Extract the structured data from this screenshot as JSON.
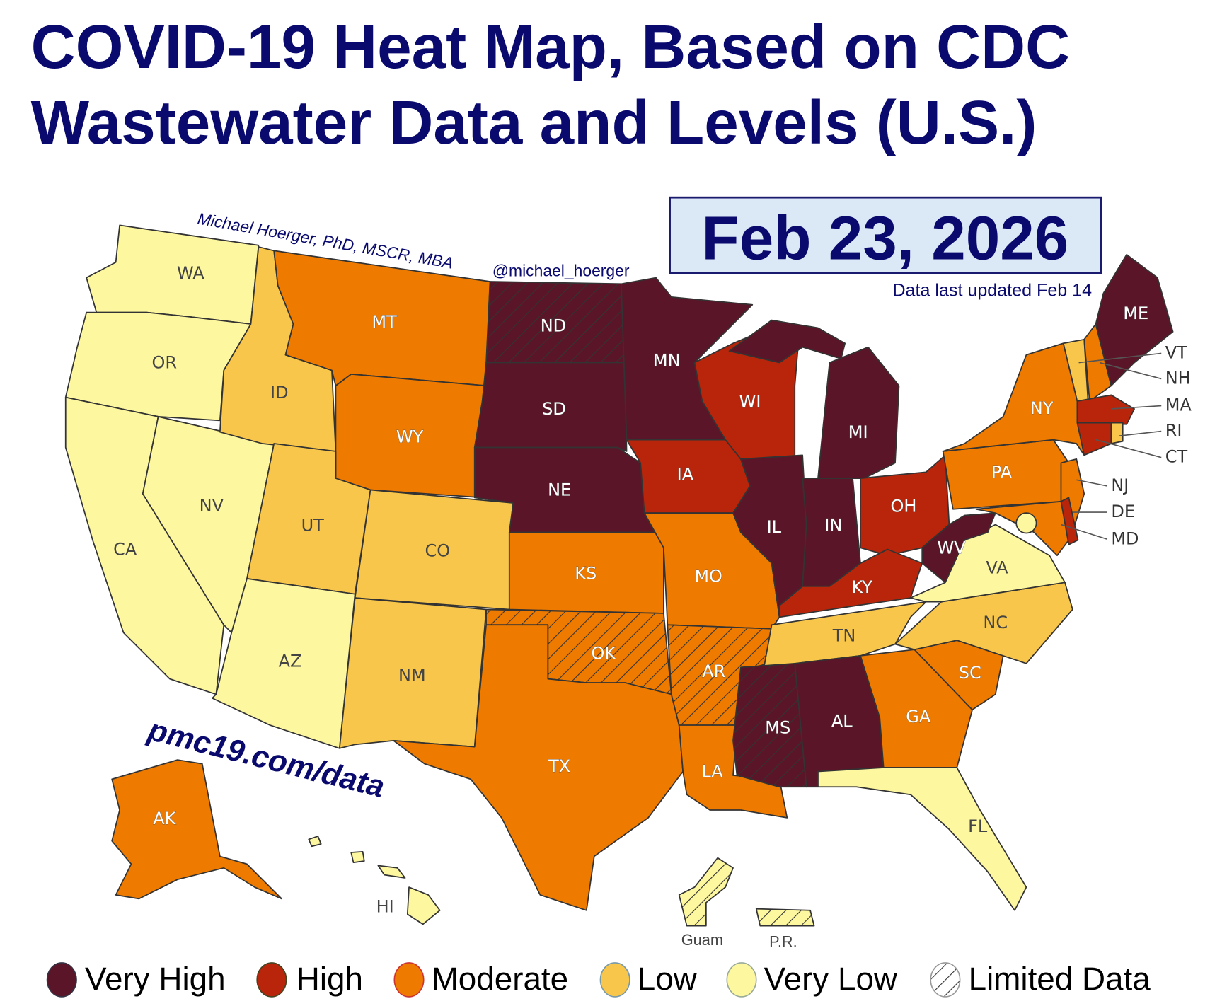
{
  "title": {
    "line1": "COVID-19 Heat Map, Based on CDC",
    "line2": "Wastewater Data and Levels (U.S.)"
  },
  "date": "Feb 23, 2026",
  "updated": "Data last updated Feb 14",
  "author": "Michael Hoerger, PhD, MSCR, MBA",
  "handle": "@michael_hoerger",
  "website": "pmc19.com/data",
  "colors": {
    "very_high": "#5a1628",
    "high": "#b8250a",
    "moderate": "#ee7b00",
    "low": "#f8c64a",
    "very_low": "#fdf7a0"
  },
  "legend": [
    {
      "key": "very_high",
      "label": "Very High"
    },
    {
      "key": "high",
      "label": "High"
    },
    {
      "key": "moderate",
      "label": "Moderate"
    },
    {
      "key": "low",
      "label": "Low"
    },
    {
      "key": "very_low",
      "label": "Very Low"
    },
    {
      "key": "limited",
      "label": "Limited Data"
    }
  ],
  "states": {
    "WA": {
      "label": "WA",
      "level": "very_low",
      "limited": false
    },
    "OR": {
      "label": "OR",
      "level": "very_low",
      "limited": false
    },
    "CA": {
      "label": "CA",
      "level": "very_low",
      "limited": false
    },
    "NV": {
      "label": "NV",
      "level": "very_low",
      "limited": false
    },
    "ID": {
      "label": "ID",
      "level": "low",
      "limited": false
    },
    "MT": {
      "label": "MT",
      "level": "moderate",
      "limited": false
    },
    "WY": {
      "label": "WY",
      "level": "moderate",
      "limited": false
    },
    "UT": {
      "label": "UT",
      "level": "low",
      "limited": false
    },
    "CO": {
      "label": "CO",
      "level": "low",
      "limited": false
    },
    "AZ": {
      "label": "AZ",
      "level": "very_low",
      "limited": false
    },
    "NM": {
      "label": "NM",
      "level": "low",
      "limited": false
    },
    "ND": {
      "label": "ND",
      "level": "very_high",
      "limited": true
    },
    "SD": {
      "label": "SD",
      "level": "very_high",
      "limited": false
    },
    "NE": {
      "label": "NE",
      "level": "very_high",
      "limited": false
    },
    "KS": {
      "label": "KS",
      "level": "moderate",
      "limited": false
    },
    "OK": {
      "label": "OK",
      "level": "moderate",
      "limited": true
    },
    "TX": {
      "label": "TX",
      "level": "moderate",
      "limited": false
    },
    "MN": {
      "label": "MN",
      "level": "very_high",
      "limited": false
    },
    "IA": {
      "label": "IA",
      "level": "high",
      "limited": false
    },
    "MO": {
      "label": "MO",
      "level": "moderate",
      "limited": false
    },
    "AR": {
      "label": "AR",
      "level": "moderate",
      "limited": true
    },
    "LA": {
      "label": "LA",
      "level": "moderate",
      "limited": false
    },
    "WI": {
      "label": "WI",
      "level": "high",
      "limited": false
    },
    "IL": {
      "label": "IL",
      "level": "very_high",
      "limited": false
    },
    "IN": {
      "label": "IN",
      "level": "very_high",
      "limited": false
    },
    "MI": {
      "label": "MI",
      "level": "very_high",
      "limited": false
    },
    "OH": {
      "label": "OH",
      "level": "high",
      "limited": false
    },
    "KY": {
      "label": "KY",
      "level": "high",
      "limited": false
    },
    "TN": {
      "label": "TN",
      "level": "low",
      "limited": false
    },
    "MS": {
      "label": "MS",
      "level": "very_high",
      "limited": true
    },
    "AL": {
      "label": "AL",
      "level": "very_high",
      "limited": false
    },
    "GA": {
      "label": "GA",
      "level": "moderate",
      "limited": false
    },
    "FL": {
      "label": "FL",
      "level": "very_low",
      "limited": false
    },
    "SC": {
      "label": "SC",
      "level": "moderate",
      "limited": false
    },
    "NC": {
      "label": "NC",
      "level": "low",
      "limited": false
    },
    "VA": {
      "label": "VA",
      "level": "very_low",
      "limited": false
    },
    "WV": {
      "label": "WV",
      "level": "very_high",
      "limited": false
    },
    "PA": {
      "label": "PA",
      "level": "moderate",
      "limited": false
    },
    "NY": {
      "label": "NY",
      "level": "moderate",
      "limited": false
    },
    "NJ": {
      "label": "NJ",
      "level": "moderate",
      "limited": false
    },
    "MD": {
      "label": "MD",
      "level": "moderate",
      "limited": false
    },
    "DE": {
      "label": "DE",
      "level": "high",
      "limited": false
    },
    "VT": {
      "label": "VT",
      "level": "low",
      "limited": false
    },
    "NH": {
      "label": "NH",
      "level": "moderate",
      "limited": false
    },
    "ME": {
      "label": "ME",
      "level": "very_high",
      "limited": false
    },
    "MA": {
      "label": "MA",
      "level": "high",
      "limited": false
    },
    "CT": {
      "label": "CT",
      "level": "high",
      "limited": false
    },
    "RI": {
      "label": "RI",
      "level": "low",
      "limited": false
    },
    "DC": {
      "label": "",
      "level": "very_low",
      "limited": false
    },
    "AK": {
      "label": "AK",
      "level": "moderate",
      "limited": false
    },
    "HI": {
      "label": "HI",
      "level": "very_low",
      "limited": false
    },
    "GU": {
      "label": "Guam",
      "level": "very_low",
      "limited": true
    },
    "PR": {
      "label": "P.R.",
      "level": "very_low",
      "limited": true
    }
  }
}
